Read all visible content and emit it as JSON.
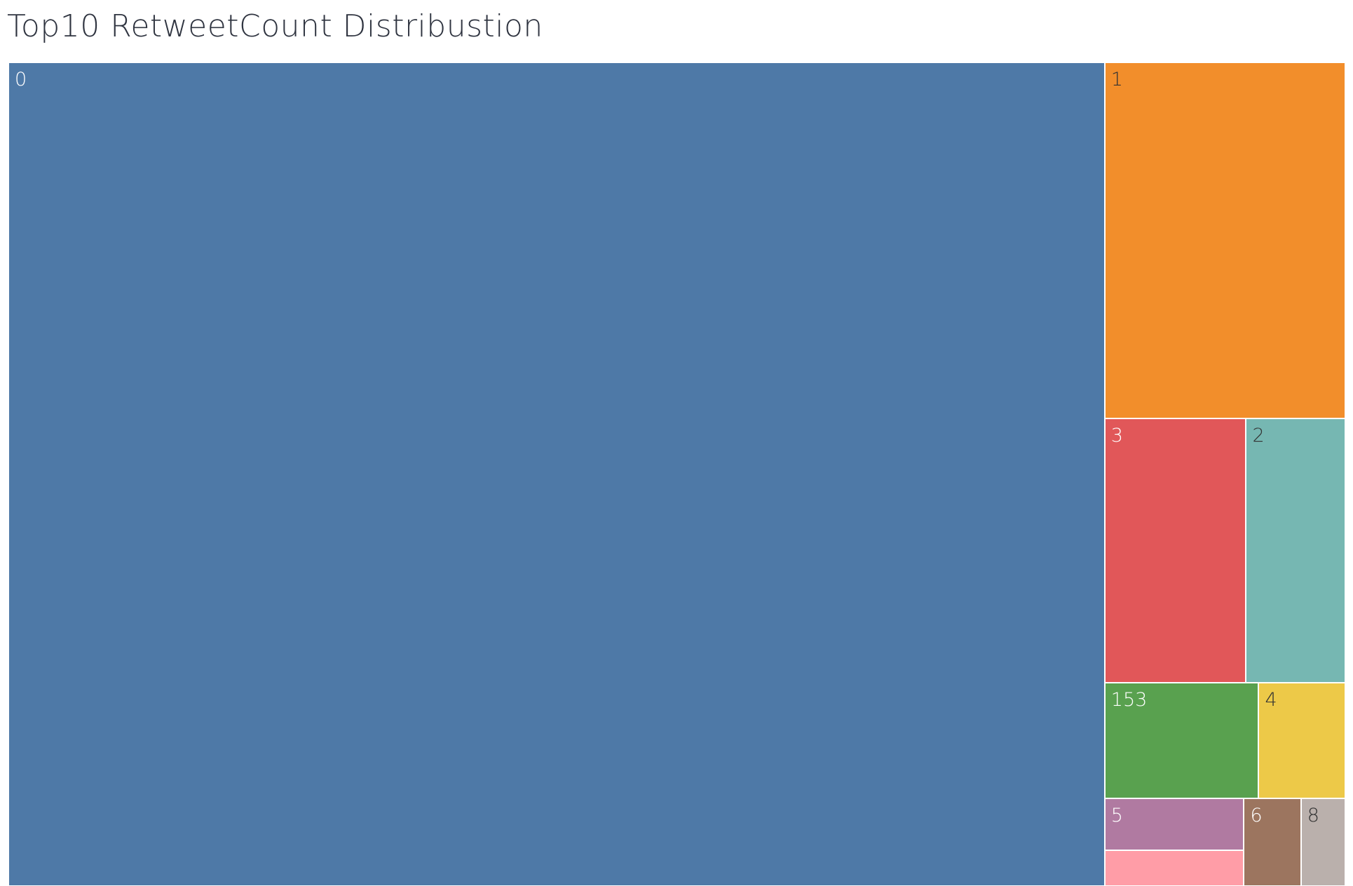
{
  "chart_data": {
    "type": "treemap",
    "title": "Top10 RetweetCount Distribustion",
    "tiles": [
      {
        "label": "0",
        "value": 1622,
        "color": "#4e79a7",
        "text_color": "#ffffff"
      },
      {
        "label": "1",
        "value": 154,
        "color": "#f28e2b",
        "text_color": "#333333"
      },
      {
        "label": "3",
        "value": 67,
        "color": "#e15759",
        "text_color": "#ffffff"
      },
      {
        "label": "2",
        "value": 47,
        "color": "#76b7b2",
        "text_color": "#333333"
      },
      {
        "label": "153",
        "value": 32,
        "color": "#59a14f",
        "text_color": "#ffffff"
      },
      {
        "label": "4",
        "value": 18,
        "color": "#edc948",
        "text_color": "#333333"
      },
      {
        "label": "5",
        "value": 13,
        "color": "#b07aa1",
        "text_color": "#ffffff"
      },
      {
        "label": "",
        "value": 9,
        "color": "#ff9da7",
        "text_color": "#333333"
      },
      {
        "label": "6",
        "value": 9,
        "color": "#9c755f",
        "text_color": "#ffffff"
      },
      {
        "label": "8",
        "value": 7,
        "color": "#bab0ac",
        "text_color": "#333333"
      }
    ]
  }
}
